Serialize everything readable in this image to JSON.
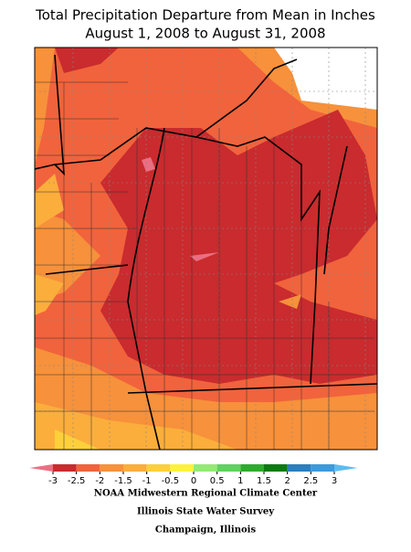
{
  "title": [
    "Total Precipitation Departure from Mean in Inches",
    "August 1, 2008 to August 31, 2008"
  ],
  "legend": {
    "ticks": [
      -3,
      -2.5,
      -2,
      -1.5,
      -1,
      -0.5,
      0,
      0.5,
      1,
      1.5,
      2,
      2.5,
      3
    ],
    "colors": [
      "#ea6f82",
      "#c92b2e",
      "#f1633c",
      "#f7913b",
      "#fbae3c",
      "#fdd03b",
      "#fff23c",
      "#94ea74",
      "#5fd25f",
      "#2eab2e",
      "#0b7a10",
      "#2a7fbe",
      "#3c9adc",
      "#5cbcf0"
    ]
  },
  "credits": [
    "NOAA Midwestern Regional Climate Center",
    "Illinois State Water Survey",
    "Champaign, Illinois"
  ]
}
